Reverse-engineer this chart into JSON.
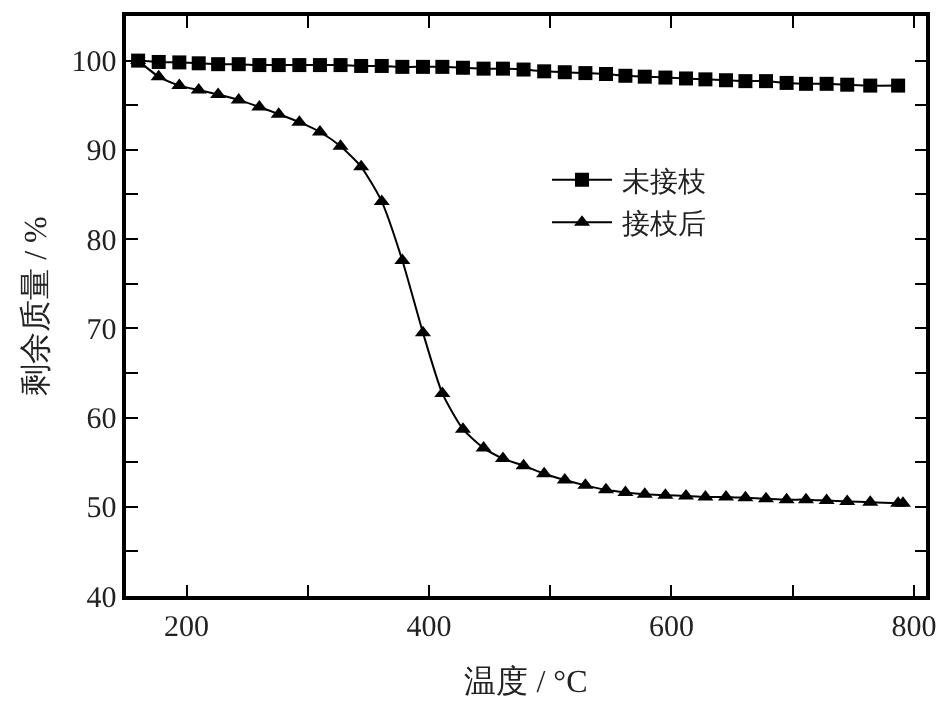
{
  "chart_data": {
    "type": "line",
    "xlabel": "温度 / °C",
    "ylabel": "剩余质量 / %",
    "xlim": [
      150,
      810
    ],
    "ylim": [
      40,
      105
    ],
    "xticks": [
      200,
      {
        "value": 300,
        "label": null
      },
      400,
      {
        "value": 500,
        "label": null
      },
      600,
      {
        "value": 700,
        "label": null
      },
      800
    ],
    "yticks": [
      40,
      {
        "value": 45,
        "label": null
      },
      50,
      {
        "value": 55,
        "label": null
      },
      60,
      {
        "value": 65,
        "label": null
      },
      70,
      {
        "value": 75,
        "label": null
      },
      80,
      {
        "value": 85,
        "label": null
      },
      90,
      {
        "value": 95,
        "label": null
      },
      100
    ],
    "grid": false,
    "legend": "center",
    "line_style": "solid",
    "series": [
      {
        "name": "未接枝",
        "color": "#000000",
        "marker": "square",
        "x": [
          160,
          177,
          194,
          210,
          226,
          243,
          260,
          276,
          293,
          310,
          327,
          344,
          361,
          378,
          395,
          411,
          428,
          445,
          461,
          478,
          495,
          512,
          529,
          546,
          562,
          578,
          595,
          612,
          628,
          645,
          661,
          678,
          695,
          711,
          728,
          745,
          764,
          787
        ],
        "values": [
          100,
          99.85,
          99.8,
          99.7,
          99.6,
          99.6,
          99.5,
          99.5,
          99.5,
          99.5,
          99.5,
          99.4,
          99.4,
          99.3,
          99.3,
          99.3,
          99.2,
          99.1,
          99.1,
          99.0,
          98.8,
          98.7,
          98.6,
          98.5,
          98.3,
          98.2,
          98.1,
          98.0,
          97.9,
          97.8,
          97.7,
          97.7,
          97.5,
          97.4,
          97.4,
          97.3,
          97.2,
          97.2
        ]
      },
      {
        "name": "接枝后",
        "color": "#000000",
        "marker": "triangle",
        "x": [
          160,
          177,
          194,
          210,
          226,
          243,
          260,
          276,
          293,
          310,
          327,
          344,
          361,
          378,
          395,
          411,
          428,
          445,
          461,
          478,
          495,
          512,
          529,
          546,
          562,
          578,
          595,
          612,
          628,
          645,
          661,
          678,
          695,
          711,
          728,
          745,
          764,
          787,
          791
        ],
        "values": [
          100,
          98.2,
          97.2,
          96.7,
          96.2,
          95.6,
          94.8,
          94.0,
          93.1,
          92.0,
          90.4,
          88.1,
          84.2,
          77.6,
          69.5,
          62.7,
          58.7,
          56.6,
          55.4,
          54.6,
          53.7,
          53.0,
          52.4,
          51.9,
          51.6,
          51.4,
          51.3,
          51.2,
          51.1,
          51.1,
          51.0,
          50.9,
          50.8,
          50.8,
          50.7,
          50.6,
          50.5,
          50.4,
          50.4
        ]
      }
    ]
  }
}
